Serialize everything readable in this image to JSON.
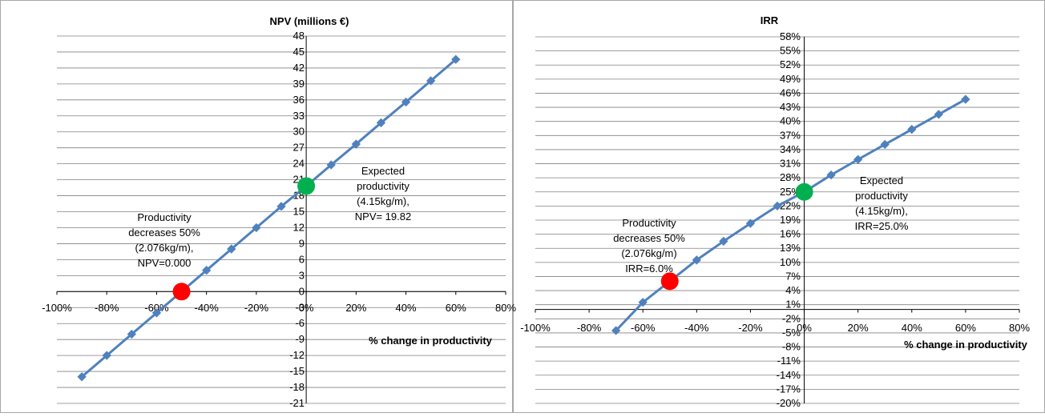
{
  "chart_data": [
    {
      "type": "line",
      "title": "NPV (millions €)",
      "xlabel": "% change in productivity",
      "ylabel": "",
      "xlim": [
        -100,
        80
      ],
      "ylim": [
        -21,
        48
      ],
      "x_ticks": [
        "-100%",
        "-80%",
        "-60%",
        "-40%",
        "-20%",
        "0%",
        "20%",
        "40%",
        "60%",
        "80%"
      ],
      "y_ticks": [
        "-21",
        "-18",
        "-15",
        "-12",
        "-9",
        "-6",
        "-3",
        "0",
        "3",
        "6",
        "9",
        "12",
        "15",
        "18",
        "21",
        "24",
        "27",
        "30",
        "33",
        "36",
        "39",
        "42",
        "45",
        "48"
      ],
      "grid": true,
      "series": [
        {
          "x": [
            -90,
            -80,
            -70,
            -60,
            -50,
            -40,
            -30,
            -20,
            -10,
            0,
            10,
            20,
            30,
            40,
            50,
            60
          ],
          "values": [
            -16,
            -12,
            -8,
            -4,
            0.0,
            4,
            8,
            12,
            16,
            19.82,
            23.8,
            27.7,
            31.7,
            35.6,
            39.6,
            43.6
          ]
        }
      ],
      "highlights": [
        {
          "x": -50,
          "y": 0.0,
          "color": "#ff0000"
        },
        {
          "x": 0,
          "y": 19.82,
          "color": "#00b050"
        }
      ],
      "annotations": [
        {
          "lines": [
            "Expected",
            "productivity",
            "(4.15kg/m),",
            "NPV= 19.82"
          ]
        },
        {
          "lines": [
            "Productivity",
            "decreases 50%",
            "(2.076kg/m),",
            "NPV=0.000"
          ]
        }
      ]
    },
    {
      "type": "line",
      "title": "IRR",
      "xlabel": "% change in productivity",
      "ylabel": "",
      "xlim": [
        -100,
        80
      ],
      "ylim": [
        -20,
        58
      ],
      "x_ticks": [
        "-100%",
        "-80%",
        "-60%",
        "-40%",
        "-20%",
        "0%",
        "20%",
        "40%",
        "60%",
        "80%"
      ],
      "y_ticks": [
        "-20%",
        "-17%",
        "-14%",
        "-11%",
        "-8%",
        "-5%",
        "-2%",
        "1%",
        "4%",
        "7%",
        "10%",
        "13%",
        "16%",
        "19%",
        "22%",
        "25%",
        "28%",
        "31%",
        "34%",
        "37%",
        "40%",
        "43%",
        "46%",
        "49%",
        "52%",
        "55%",
        "58%"
      ],
      "grid": true,
      "series": [
        {
          "x": [
            -70,
            -60,
            -50,
            -40,
            -30,
            -20,
            -10,
            0,
            10,
            20,
            30,
            40,
            50,
            60
          ],
          "values": [
            -4.5,
            1.5,
            6.0,
            10.5,
            14.5,
            18.3,
            22.0,
            25.0,
            28.6,
            31.9,
            35.1,
            38.3,
            41.5,
            44.7
          ]
        }
      ],
      "highlights": [
        {
          "x": -50,
          "y": 6.0,
          "color": "#ff0000"
        },
        {
          "x": 0,
          "y": 25.0,
          "color": "#00b050"
        }
      ],
      "annotations": [
        {
          "lines": [
            "Expected",
            "productivity",
            "(4.15kg/m),",
            "IRR=25.0%"
          ]
        },
        {
          "lines": [
            "Productivity",
            "decreases 50%",
            "(2.076kg/m)",
            "IRR=6.0%"
          ]
        }
      ]
    }
  ],
  "colors": {
    "line": "#4f81bd",
    "marker": "#4f81bd",
    "grid": "#808080",
    "axis": "#000000",
    "border": "#a6a6a6"
  }
}
